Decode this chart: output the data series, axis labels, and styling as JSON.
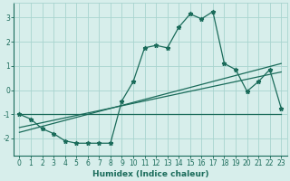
{
  "title": "",
  "xlabel": "Humidex (Indice chaleur)",
  "bg_color": "#d7eeeb",
  "grid_color": "#a8d4cf",
  "line_color": "#1a6b5a",
  "xlim": [
    -0.5,
    23.5
  ],
  "ylim": [
    -2.7,
    3.6
  ],
  "yticks": [
    -2,
    -1,
    0,
    1,
    2,
    3
  ],
  "xticks": [
    0,
    1,
    2,
    3,
    4,
    5,
    6,
    7,
    8,
    9,
    10,
    11,
    12,
    13,
    14,
    15,
    16,
    17,
    18,
    19,
    20,
    21,
    22,
    23
  ],
  "series1_x": [
    0,
    1,
    2,
    3,
    4,
    5,
    6,
    7,
    8,
    9,
    10,
    11,
    12,
    13,
    14,
    15,
    16,
    17,
    18,
    19,
    20,
    21,
    22,
    23
  ],
  "series1_y": [
    -1.0,
    -1.2,
    -1.6,
    -1.8,
    -2.1,
    -2.2,
    -2.2,
    -2.2,
    -2.2,
    -0.45,
    0.35,
    1.75,
    1.85,
    1.75,
    2.6,
    3.15,
    2.95,
    3.25,
    1.1,
    0.85,
    -0.05,
    0.35,
    0.85,
    -0.75
  ],
  "series2_x": [
    0,
    23
  ],
  "series2_y": [
    -1.0,
    -1.0
  ],
  "series3_x": [
    0,
    23
  ],
  "series3_y": [
    -1.55,
    0.75
  ],
  "series4_x": [
    0,
    23
  ],
  "series4_y": [
    -1.75,
    1.1
  ],
  "tick_fontsize": 5.5,
  "xlabel_fontsize": 6.5
}
